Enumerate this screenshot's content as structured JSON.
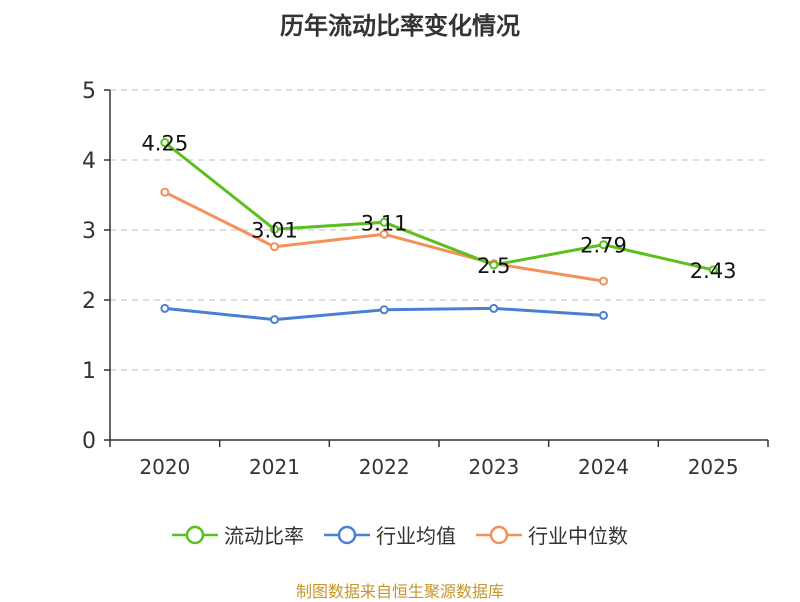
{
  "source_note": "制图数据来自恒生聚源数据库",
  "colors": {
    "current_ratio": "#5bbf1e",
    "industry_mean": "#4a7fd4",
    "industry_median": "#f4905a",
    "axis": "#333333",
    "grid": "#cccccc",
    "source_note": "#c8962b"
  },
  "chart_data": {
    "type": "line",
    "title": "历年流动比率变化情况",
    "xlabel": "",
    "ylabel": "",
    "categories": [
      "2020",
      "2021",
      "2022",
      "2023",
      "2024",
      "2025"
    ],
    "ylim": [
      0,
      5
    ],
    "yticks": [
      "0",
      "1",
      "2",
      "3",
      "4",
      "5"
    ],
    "grid": true,
    "legend_position": "bottom",
    "series": [
      {
        "name": "流动比率",
        "values": [
          4.25,
          3.01,
          3.11,
          2.5,
          2.79,
          2.43
        ],
        "labels": [
          "4.25",
          "3.01",
          "3.11",
          "2.5",
          "2.79",
          "2.43"
        ]
      },
      {
        "name": "行业均值",
        "values": [
          1.88,
          1.72,
          1.86,
          1.88,
          1.78,
          null
        ]
      },
      {
        "name": "行业中位数",
        "values": [
          3.54,
          2.76,
          2.94,
          2.52,
          2.27,
          null
        ]
      }
    ]
  }
}
